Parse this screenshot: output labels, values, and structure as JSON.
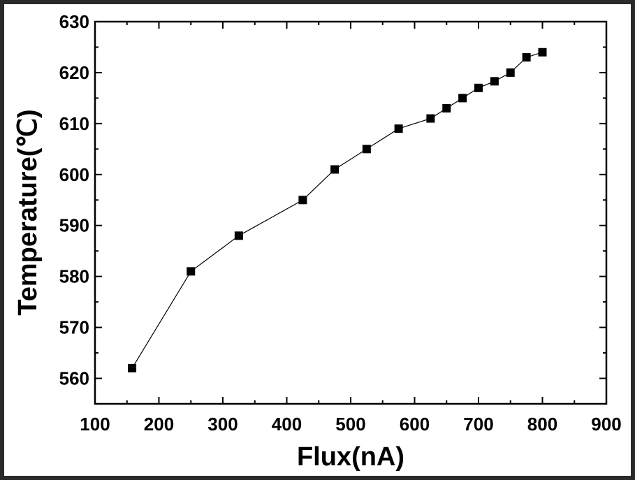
{
  "chart_data": {
    "type": "line",
    "title": "",
    "xlabel": "Flux(nA)",
    "ylabel": "Temperature(℃)",
    "xlim": [
      100,
      900
    ],
    "ylim": [
      555,
      630
    ],
    "xticks": [
      100,
      200,
      300,
      400,
      500,
      600,
      700,
      800,
      900
    ],
    "yticks": [
      560,
      570,
      580,
      590,
      600,
      610,
      620,
      630
    ],
    "grid": false,
    "legend": "none",
    "marker": "square",
    "line_color": "#000000",
    "marker_color": "#000000",
    "series": [
      {
        "x": [
          158,
          250,
          325,
          425,
          475,
          525,
          575,
          625,
          650,
          675,
          700,
          725,
          750,
          775,
          800
        ],
        "y": [
          562,
          581,
          588,
          595,
          601,
          605,
          609,
          611,
          613,
          615,
          617,
          618.3,
          620,
          623,
          624
        ]
      }
    ]
  }
}
